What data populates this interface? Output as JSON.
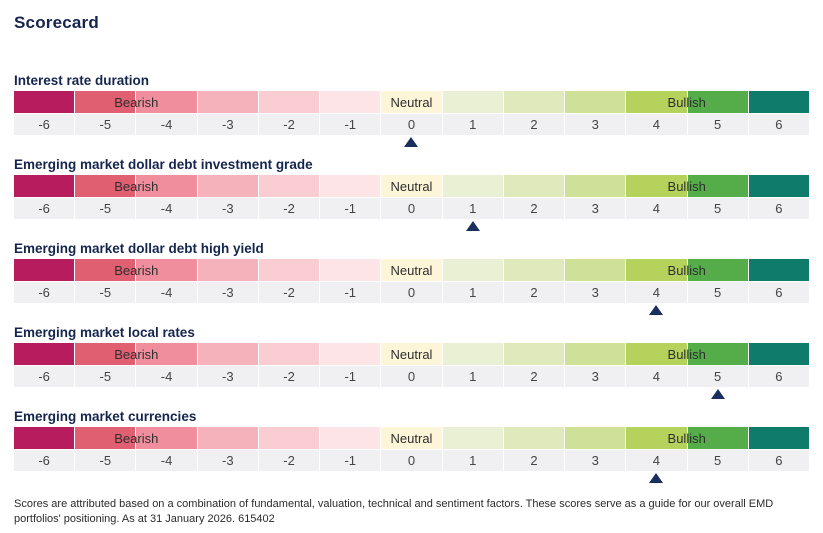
{
  "title": "Scorecard",
  "scale": {
    "numbers": [
      "-6",
      "-5",
      "-4",
      "-3",
      "-2",
      "-1",
      "0",
      "1",
      "2",
      "3",
      "4",
      "5",
      "6"
    ],
    "cell_colors": [
      "#b71d5e",
      "#e05f70",
      "#f18e9e",
      "#f6b2ba",
      "#facdd3",
      "#fce4e7",
      "#fcf5d8",
      "#eaf0d4",
      "#dfe9bb",
      "#cfe099",
      "#b5d35c",
      "#55ad4a",
      "#0e7b6b"
    ],
    "zone_labels": {
      "bearish": "Bearish",
      "neutral": "Neutral",
      "bullish": "Bullish"
    }
  },
  "rows": [
    {
      "label": "Interest rate duration",
      "score": 0
    },
    {
      "label": "Emerging market dollar debt investment grade",
      "score": 1
    },
    {
      "label": "Emerging market dollar debt high yield",
      "score": 4
    },
    {
      "label": "Emerging market local rates",
      "score": 5
    },
    {
      "label": "Emerging market currencies",
      "score": 4
    }
  ],
  "footnote": "Scores are attributed based on a combination of fundamental, valuation, technical and sentiment factors. These scores serve as a guide for our overall EMD portfolios' positioning. As at 31 January 2026. 615402",
  "colors": {
    "heading_navy": "#16254e",
    "marker": "#1b2f5e",
    "number_bg": "#f0f0f2",
    "number_text": "#444444"
  },
  "chart_data": {
    "type": "table",
    "title": "Scorecard",
    "categories": [
      "Interest rate duration",
      "Emerging market dollar debt investment grade",
      "Emerging market dollar debt high yield",
      "Emerging market local rates",
      "Emerging market currencies"
    ],
    "values": [
      0,
      1,
      4,
      5,
      4
    ],
    "scale": {
      "min": -6,
      "max": 6,
      "step": 1
    },
    "zones": [
      {
        "label": "Bearish",
        "range": [
          -6,
          -1
        ]
      },
      {
        "label": "Neutral",
        "range": [
          0,
          0
        ]
      },
      {
        "label": "Bullish",
        "range": [
          1,
          6
        ]
      }
    ],
    "legend_position": "in-band",
    "marker_shape": "triangle-up"
  }
}
